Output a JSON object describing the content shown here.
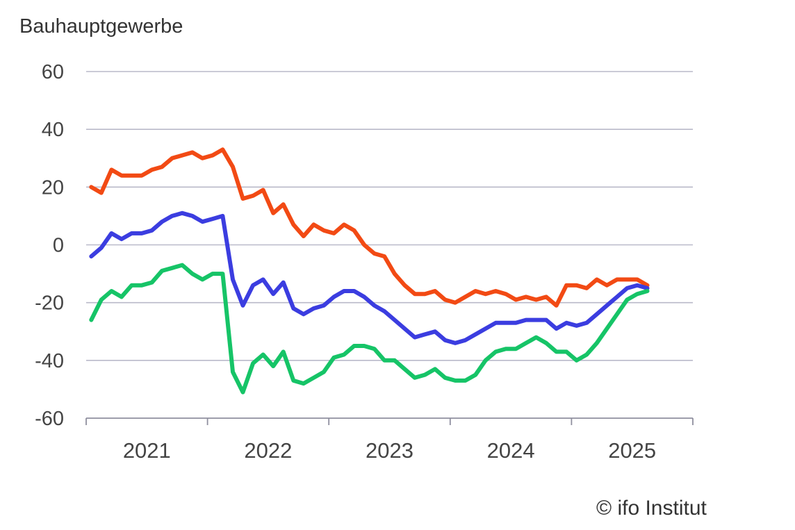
{
  "chart_data": {
    "type": "line",
    "title": "Bauhauptgewerbe",
    "ylim": [
      -60,
      60
    ],
    "yticks": [
      "60",
      "40",
      "20",
      "0",
      "-20",
      "-40",
      "-60"
    ],
    "x_domain": [
      2020.9583,
      2025.9583
    ],
    "x_labels": [
      "2021",
      "2022",
      "2023",
      "2024",
      "2025"
    ],
    "x": [
      2021.0,
      2021.0833,
      2021.1667,
      2021.25,
      2021.3333,
      2021.4167,
      2021.5,
      2021.5833,
      2021.6667,
      2021.75,
      2021.8333,
      2021.9167,
      2022.0,
      2022.0833,
      2022.1667,
      2022.25,
      2022.3333,
      2022.4167,
      2022.5,
      2022.5833,
      2022.6667,
      2022.75,
      2022.8333,
      2022.9167,
      2023.0,
      2023.0833,
      2023.1667,
      2023.25,
      2023.3333,
      2023.4167,
      2023.5,
      2023.5833,
      2023.6667,
      2023.75,
      2023.8333,
      2023.9167,
      2024.0,
      2024.0833,
      2024.1667,
      2024.25,
      2024.3333,
      2024.4167,
      2024.5,
      2024.5833,
      2024.6667,
      2024.75,
      2024.8333,
      2024.9167,
      2025.0,
      2025.0833,
      2025.1667,
      2025.25,
      2025.3333,
      2025.4167,
      2025.5,
      2025.5833,
      2025.6667,
      2025.75,
      2025.8333,
      2025.9167
    ],
    "series": [
      {
        "color": "#f24a14",
        "values": [
          20,
          18,
          26,
          24,
          24,
          24,
          26,
          27,
          30,
          31,
          32,
          30,
          31,
          33,
          27,
          16,
          17,
          19,
          11,
          14,
          7,
          3,
          7,
          5,
          4,
          7,
          5,
          0,
          -3,
          -4,
          -10,
          -14,
          -17,
          -17,
          -16,
          -19,
          -20,
          -18,
          -16,
          -17,
          -16,
          -17,
          -19,
          -18,
          -19,
          -18,
          -21,
          -14,
          -14,
          -15,
          -12,
          -14,
          -12,
          -12,
          -12,
          -14,
          null,
          null,
          null,
          null
        ]
      },
      {
        "color": "#3b3de0",
        "values": [
          -4,
          -1,
          4,
          2,
          4,
          4,
          5,
          8,
          10,
          11,
          10,
          8,
          9,
          10,
          -12,
          -21,
          -14,
          -12,
          -17,
          -13,
          -22,
          -24,
          -22,
          -21,
          -18,
          -16,
          -16,
          -18,
          -21,
          -23,
          -26,
          -29,
          -32,
          -31,
          -30,
          -33,
          -34,
          -33,
          -31,
          -29,
          -27,
          -27,
          -27,
          -26,
          -26,
          -26,
          -29,
          -27,
          -28,
          -27,
          -24,
          -21,
          -18,
          -15,
          -14,
          -15,
          null,
          null,
          null,
          null
        ]
      },
      {
        "color": "#16c467",
        "values": [
          -26,
          -19,
          -16,
          -18,
          -14,
          -14,
          -13,
          -9,
          -8,
          -7,
          -10,
          -12,
          -10,
          -10,
          -44,
          -51,
          -41,
          -38,
          -42,
          -37,
          -47,
          -48,
          -46,
          -44,
          -39,
          -38,
          -35,
          -35,
          -36,
          -40,
          -40,
          -43,
          -46,
          -45,
          -43,
          -46,
          -47,
          -47,
          -45,
          -40,
          -37,
          -36,
          -36,
          -34,
          -32,
          -34,
          -37,
          -37,
          -40,
          -38,
          -34,
          -29,
          -24,
          -19,
          -17,
          -16,
          null,
          null,
          null,
          null
        ]
      }
    ]
  },
  "credit": "© ifo Institut"
}
